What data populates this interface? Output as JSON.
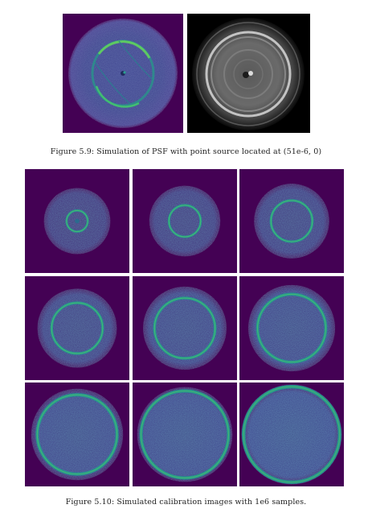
{
  "figure_5_9": {
    "caption": "Figure 5.9: Simulation of PSF with point source located at (51e-6, 0)",
    "panels": [
      {
        "name": "psf-simulation-viridis",
        "colormap": "viridis"
      },
      {
        "name": "psf-simulation-grayscale",
        "colormap": "gray"
      }
    ]
  },
  "figure_5_10": {
    "caption": "Figure 5.10: Simulated calibration images with 1e6 samples.",
    "grid": {
      "rows": 3,
      "columns": 3
    },
    "colormap": "viridis",
    "ring_scale": [
      0.09,
      0.2,
      0.3,
      0.4,
      0.5,
      0.58,
      0.7,
      0.78,
      0.9
    ]
  },
  "colors": {
    "viridis_dark": "#440154",
    "viridis_mid": "#3b528b",
    "viridis_teal": "#21918c",
    "viridis_green": "#5ec962",
    "background": "#ffffff"
  }
}
